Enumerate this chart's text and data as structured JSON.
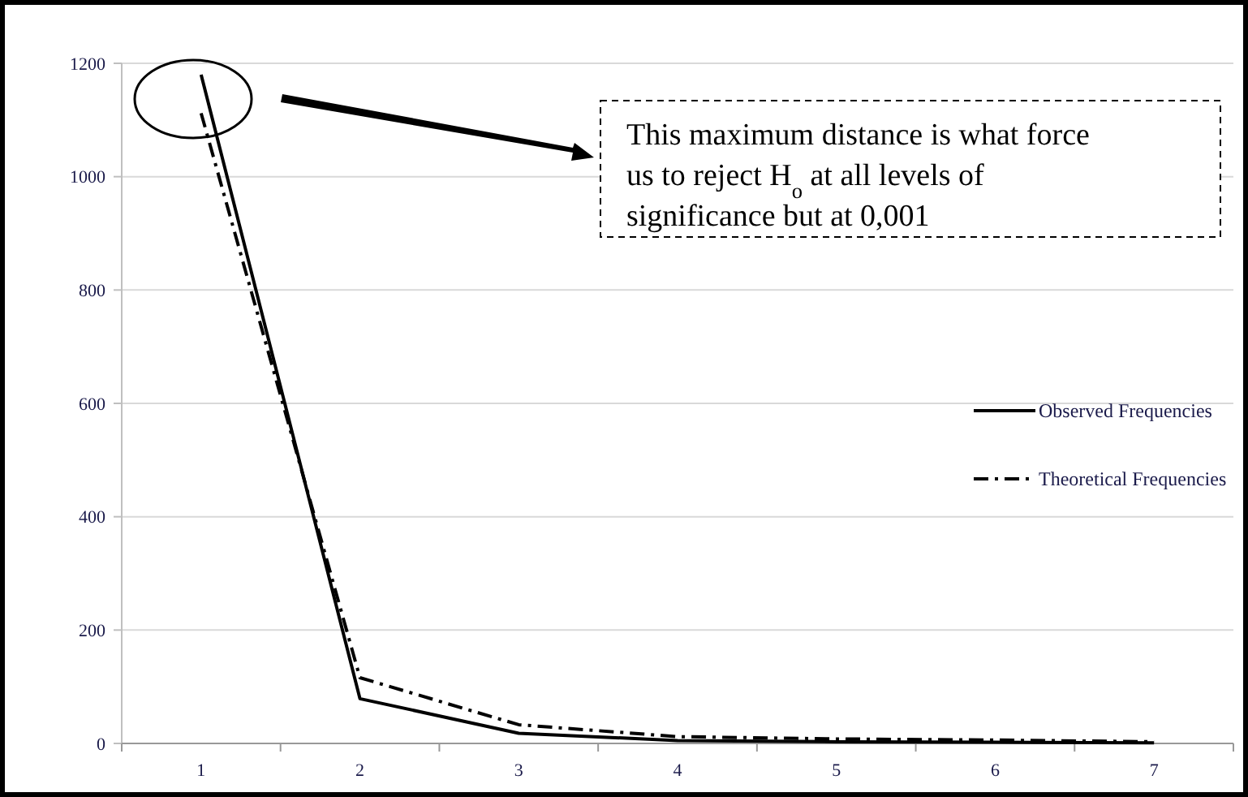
{
  "chart_data": {
    "type": "line",
    "categories": [
      "1",
      "2",
      "3",
      "4",
      "5",
      "6",
      "7"
    ],
    "series": [
      {
        "name": "Observed Frequencies",
        "color": "#000000",
        "line_style": "solid",
        "values": [
          1180,
          79,
          18,
          5,
          3,
          2,
          1
        ]
      },
      {
        "name": "Theoretical Frequencies",
        "color": "#000000",
        "line_style": "dashed",
        "values": [
          1112,
          116,
          33,
          12,
          8,
          6,
          3
        ]
      }
    ],
    "ylim": [
      0,
      1200
    ],
    "yticks": [
      0,
      200,
      400,
      600,
      800,
      1000,
      1200
    ],
    "grid": "y",
    "legend": "right",
    "marker": "none",
    "annotations": [
      "This maximum distance is what force us to reject H$_{o}$ at all levels of significance but at 0,001"
    ]
  }
}
